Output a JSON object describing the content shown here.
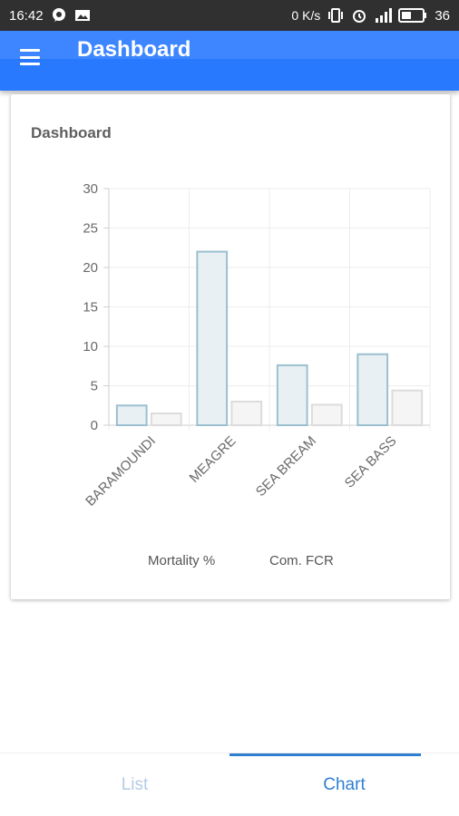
{
  "status_bar": {
    "time": "16:42",
    "network_speed": "0 K/s",
    "battery": "36"
  },
  "app_bar": {
    "title": "Dashboard",
    "menu_icon": "hamburger-menu-icon"
  },
  "card": {
    "title": "Dashboard"
  },
  "chart_data": {
    "type": "bar",
    "categories": [
      "BARAMOUNDI",
      "MEAGRE",
      "SEA BREAM",
      "SEA BASS"
    ],
    "series": [
      {
        "name": "Mortality %",
        "values": [
          2.5,
          22,
          7.6,
          9
        ],
        "color": "#9bbfcf",
        "fill": "#e8f0f4"
      },
      {
        "name": "Com. FCR",
        "values": [
          1.5,
          3,
          2.6,
          4.4
        ],
        "color": "#dcdcdc",
        "fill": "#f5f5f5"
      }
    ],
    "yticks": [
      0,
      5,
      10,
      15,
      20,
      25,
      30
    ],
    "ylim": [
      0,
      30
    ],
    "legend_position": "bottom",
    "grid": true
  },
  "bottom_nav": {
    "tabs": [
      {
        "label": "List",
        "active": false
      },
      {
        "label": "Chart",
        "active": true
      }
    ],
    "active_color": "#2f7fd1",
    "inactive_color": "#b5cbe6"
  }
}
